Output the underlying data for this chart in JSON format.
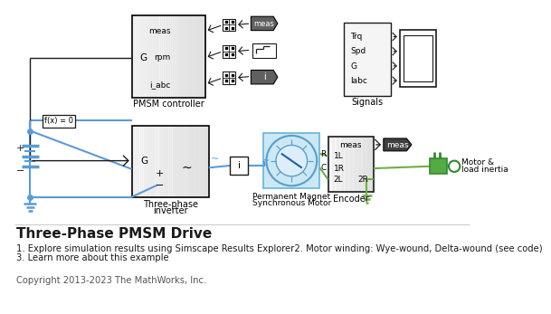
{
  "title": "Three-Phase PMSM Drive",
  "line1": "1. Explore simulation results using Simscape Results Explorer2. Motor winding: Wye-wound, Delta-wound (see code)",
  "line2": "3. Learn more about this example",
  "copyright": "Copyright 2013-2023 The MathWorks, Inc.",
  "bg_color": "#ffffff",
  "blue": "#5b9bd5",
  "green": "#70ad47",
  "black": "#1a1a1a",
  "gray_dark": "#b0b0b0",
  "gray_light": "#f0f0f0",
  "gray_mid": "#d8d8d8"
}
